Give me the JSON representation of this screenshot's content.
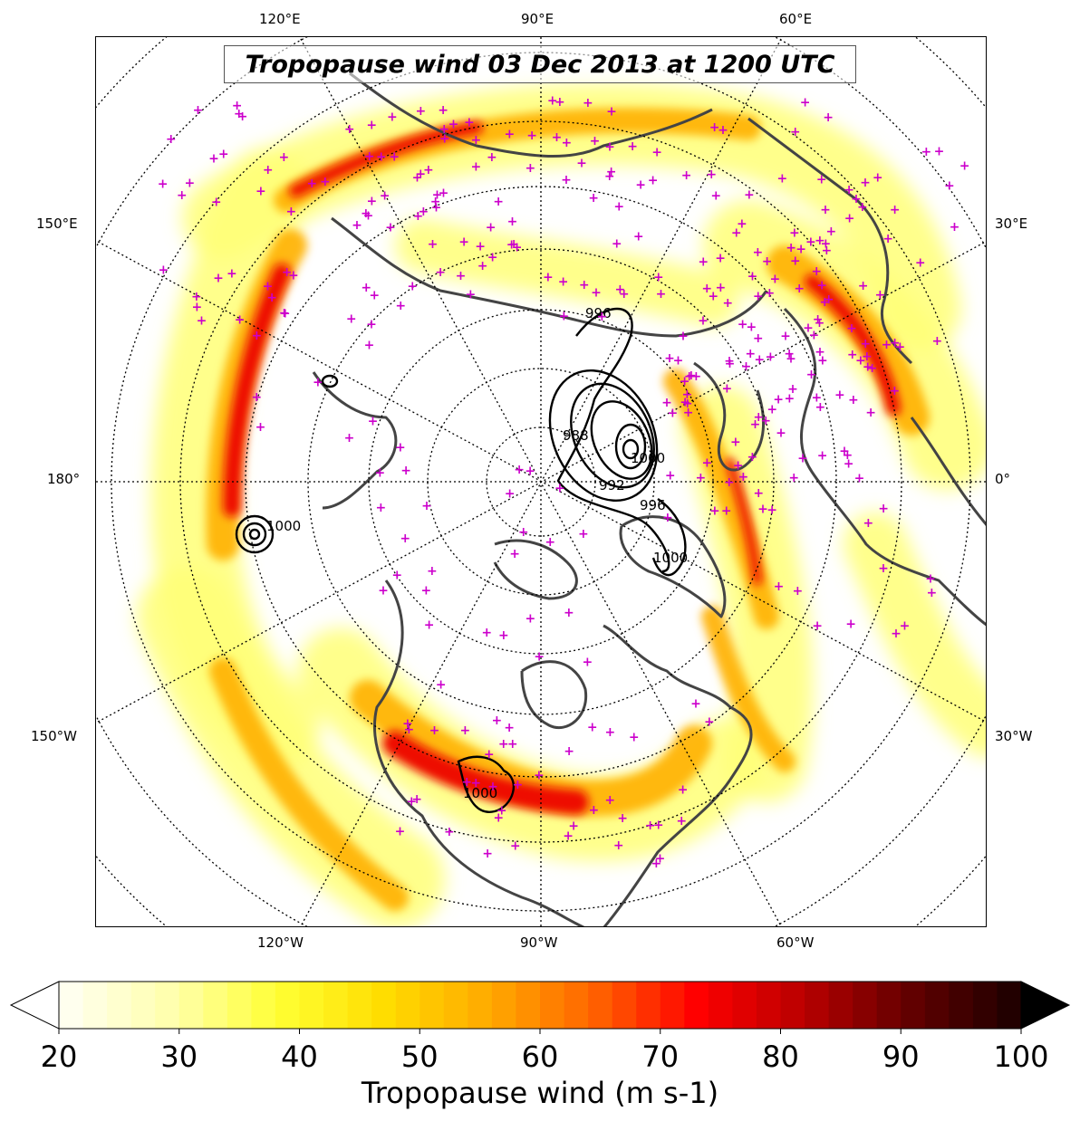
{
  "title": "Tropopause wind 03 Dec 2013 at 1200 UTC",
  "longitude_labels": {
    "top": [
      "120°E",
      "90°E",
      "60°E"
    ],
    "bottom": [
      "120°W",
      "90°W",
      "60°W"
    ],
    "left": [
      "150°E",
      "180°",
      "150°W"
    ],
    "right": [
      "30°E",
      "0°",
      "30°W"
    ]
  },
  "contour_labels": [
    "996",
    "988",
    "996",
    "1000",
    "1000",
    "1000",
    "992",
    "1000"
  ],
  "colorbar": {
    "label": "Tropopause wind (m s-1)",
    "ticks": [
      "20",
      "30",
      "40",
      "50",
      "60",
      "70",
      "80",
      "90",
      "100"
    ],
    "min": 20,
    "max": 100,
    "extend": "both",
    "colormap": "hot_r",
    "colors": [
      "#ffffee",
      "#ffffaa",
      "#ffff33",
      "#ffdd00",
      "#ffaa00",
      "#ff6600",
      "#ff0000",
      "#bb0000",
      "#660000",
      "#220000"
    ]
  },
  "overlay": {
    "station_marker": "magenta-plus",
    "station_color": "#cc00cc",
    "contour_variable": "mean sea level pressure",
    "coastline_color": "#444444"
  }
}
